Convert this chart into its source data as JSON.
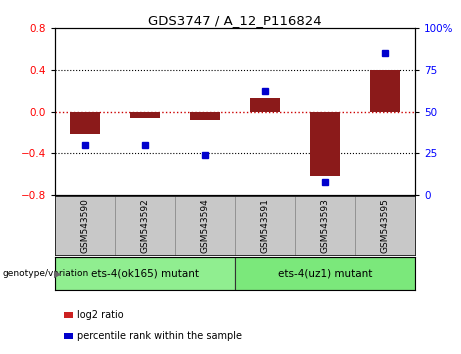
{
  "title": "GDS3747 / A_12_P116824",
  "categories": [
    "GSM543590",
    "GSM543592",
    "GSM543594",
    "GSM543591",
    "GSM543593",
    "GSM543595"
  ],
  "log2_ratio": [
    -0.22,
    -0.06,
    -0.08,
    0.13,
    -0.62,
    0.4
  ],
  "percentile_rank": [
    30,
    30,
    24,
    62,
    8,
    85
  ],
  "bar_color": "#8B1A1A",
  "dot_color": "#0000CD",
  "ylim_left": [
    -0.8,
    0.8
  ],
  "ylim_right": [
    0,
    100
  ],
  "yticks_left": [
    -0.8,
    -0.4,
    0.0,
    0.4,
    0.8
  ],
  "yticks_right": [
    0,
    25,
    50,
    75,
    100
  ],
  "groups": [
    {
      "label": "ets-4(ok165) mutant",
      "indices": [
        0,
        1,
        2
      ],
      "color": "#90EE90"
    },
    {
      "label": "ets-4(uz1) mutant",
      "indices": [
        3,
        4,
        5
      ],
      "color": "#7BE87B"
    }
  ],
  "group_label_prefix": "genotype/variation",
  "legend_log2": "log2 ratio",
  "legend_pct": "percentile rank within the sample",
  "bar_color_legend": "#CC2222",
  "dot_color_legend": "#0000CC",
  "bar_width": 0.5,
  "dotted_line_color": "#000000",
  "zero_line_color": "#CC0000",
  "label_bg": "#C8C8C8",
  "label_border": "#888888"
}
